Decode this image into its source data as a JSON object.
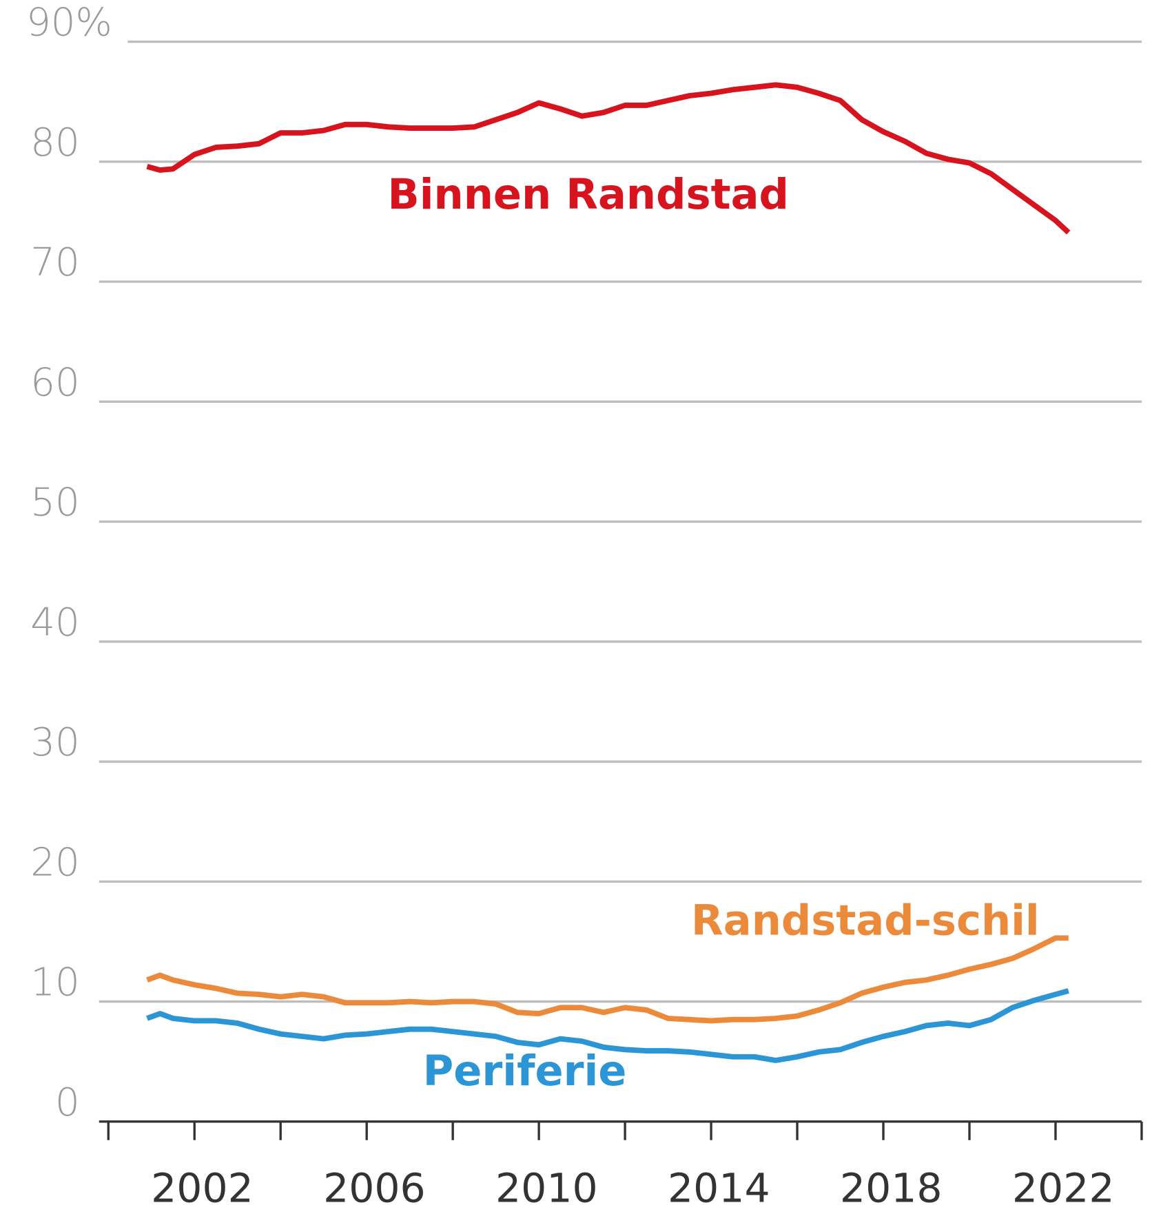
{
  "chart_data": {
    "type": "line",
    "x": [
      2000.9,
      2001.2,
      2001.5,
      2002,
      2002.5,
      2003,
      2003.5,
      2004,
      2004.5,
      2005,
      2005.5,
      2006,
      2006.5,
      2007,
      2007.5,
      2008,
      2008.5,
      2009,
      2009.5,
      2010,
      2010.5,
      2011,
      2011.5,
      2012,
      2012.5,
      2013,
      2013.5,
      2014,
      2014.5,
      2015,
      2015.5,
      2016,
      2016.5,
      2017,
      2017.5,
      2018,
      2018.5,
      2019,
      2019.5,
      2020,
      2020.5,
      2021,
      2021.5,
      2022,
      2022.3
    ],
    "series": [
      {
        "name": "Binnen Randstad",
        "color": "#d7141e",
        "values": [
          79.6,
          79.3,
          79.4,
          80.6,
          81.2,
          81.3,
          81.5,
          82.4,
          82.4,
          82.6,
          83.1,
          83.1,
          82.9,
          82.8,
          82.8,
          82.8,
          82.9,
          83.5,
          84.1,
          84.9,
          84.4,
          83.8,
          84.1,
          84.7,
          84.7,
          85.1,
          85.5,
          85.7,
          86.0,
          86.2,
          86.4,
          86.2,
          85.7,
          85.1,
          83.5,
          82.5,
          81.7,
          80.7,
          80.2,
          79.9,
          79.0,
          77.7,
          76.4,
          75.1,
          74.1
        ]
      },
      {
        "name": "Randstad-schil",
        "color": "#ec8a3c",
        "values": [
          11.8,
          12.2,
          11.8,
          11.4,
          11.1,
          10.7,
          10.6,
          10.4,
          10.6,
          10.4,
          9.9,
          9.9,
          9.9,
          10.0,
          9.9,
          10.0,
          10.0,
          9.8,
          9.1,
          9.0,
          9.5,
          9.5,
          9.1,
          9.5,
          9.3,
          8.6,
          8.5,
          8.4,
          8.5,
          8.5,
          8.6,
          8.8,
          9.3,
          9.9,
          10.7,
          11.2,
          11.6,
          11.8,
          12.2,
          12.7,
          13.1,
          13.6,
          14.4,
          15.3,
          15.3
        ]
      },
      {
        "name": "Periferie",
        "color": "#2b95d6",
        "values": [
          8.6,
          9.0,
          8.6,
          8.4,
          8.4,
          8.2,
          7.7,
          7.3,
          7.1,
          6.9,
          7.2,
          7.3,
          7.5,
          7.7,
          7.7,
          7.5,
          7.3,
          7.1,
          6.6,
          6.4,
          6.9,
          6.7,
          6.2,
          6.0,
          5.9,
          5.9,
          5.8,
          5.6,
          5.4,
          5.4,
          5.1,
          5.4,
          5.8,
          6.0,
          6.6,
          7.1,
          7.5,
          8.0,
          8.2,
          8.0,
          8.5,
          9.5,
          10.1,
          10.6,
          10.9
        ]
      }
    ],
    "xlim": [
      2000,
      2024
    ],
    "xticks": [
      2002,
      2006,
      2010,
      2014,
      2018,
      2022
    ],
    "xminor_ticks": [
      2000,
      2004,
      2008,
      2012,
      2016,
      2020,
      2024
    ],
    "ylim": [
      0,
      90
    ],
    "yticks": [
      0,
      10,
      20,
      30,
      40,
      50,
      60,
      70,
      80,
      {
        "value": 90,
        "label": "90%"
      }
    ],
    "grid": true
  }
}
